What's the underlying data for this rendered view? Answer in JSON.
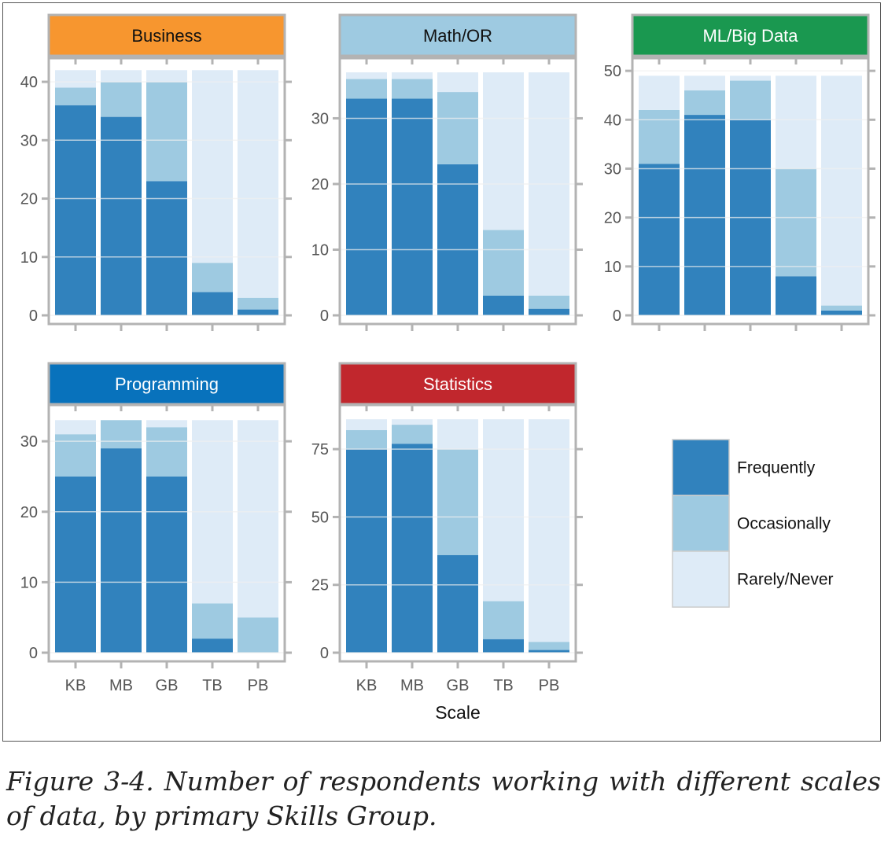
{
  "chart_data": {
    "type": "bar",
    "stacked": true,
    "categories": [
      "KB",
      "MB",
      "GB",
      "TB",
      "PB"
    ],
    "xlabel": "Scale",
    "ylabel": "",
    "grid": true,
    "legend_position": "right",
    "legend": [
      {
        "name": "Frequently",
        "color": "#3182bd"
      },
      {
        "name": "Occasionally",
        "color": "#9ecae1"
      },
      {
        "name": "Rarely/Never",
        "color": "#deebf7"
      }
    ],
    "panels": [
      {
        "title": "Business",
        "title_color": "#f7962f",
        "title_text_color": "#111111",
        "ylim": [
          0,
          42.3
        ],
        "yticks": [
          0,
          10,
          20,
          30,
          40
        ],
        "series": [
          {
            "name": "Frequently",
            "values": [
              36,
              34,
              23,
              4,
              1
            ]
          },
          {
            "name": "Occasionally",
            "values": [
              3,
              6,
              17,
              5,
              2
            ]
          },
          {
            "name": "Rarely/Never",
            "values": [
              3,
              2,
              2,
              33,
              39
            ]
          }
        ]
      },
      {
        "title": "Math/OR",
        "title_color": "#9ecae1",
        "title_text_color": "#111111",
        "ylim": [
          0,
          37.6
        ],
        "yticks": [
          0,
          10,
          20,
          30
        ],
        "series": [
          {
            "name": "Frequently",
            "values": [
              33,
              33,
              23,
              3,
              1
            ]
          },
          {
            "name": "Occasionally",
            "values": [
              3,
              3,
              11,
              10,
              2
            ]
          },
          {
            "name": "Rarely/Never",
            "values": [
              1,
              1,
              3,
              24,
              34
            ]
          }
        ]
      },
      {
        "title": "ML/Big Data",
        "title_color": "#1a9850",
        "title_text_color": "#ffffff",
        "ylim": [
          0,
          50.5
        ],
        "yticks": [
          0,
          10,
          20,
          30,
          40,
          50
        ],
        "series": [
          {
            "name": "Frequently",
            "values": [
              31,
              41,
              40,
              8,
              1
            ]
          },
          {
            "name": "Occasionally",
            "values": [
              11,
              5,
              8,
              22,
              1
            ]
          },
          {
            "name": "Rarely/Never",
            "values": [
              7,
              3,
              1,
              19,
              47
            ]
          }
        ]
      },
      {
        "title": "Programming",
        "title_color": "#0872bc",
        "title_text_color": "#ffffff",
        "ylim": [
          0,
          33.7
        ],
        "yticks": [
          0,
          10,
          20,
          30
        ],
        "series": [
          {
            "name": "Frequently",
            "values": [
              25,
              29,
              25,
              2,
              0
            ]
          },
          {
            "name": "Occasionally",
            "values": [
              6,
              4,
              7,
              5,
              5
            ]
          },
          {
            "name": "Rarely/Never",
            "values": [
              2,
              0,
              1,
              26,
              28
            ]
          }
        ]
      },
      {
        "title": "Statistics",
        "title_color": "#c1272d",
        "title_text_color": "#ffffff",
        "ylim": [
          0,
          87.5
        ],
        "yticks": [
          0,
          25,
          50,
          75
        ],
        "series": [
          {
            "name": "Frequently",
            "values": [
              75,
              77,
              36,
              5,
              1
            ]
          },
          {
            "name": "Occasionally",
            "values": [
              7,
              7,
              39,
              14,
              3
            ]
          },
          {
            "name": "Rarely/Never",
            "values": [
              4,
              2,
              11,
              67,
              82
            ]
          }
        ]
      }
    ]
  },
  "caption": "Figure 3-4. Number of respondents working with different scales of data, by primary Skills Group."
}
